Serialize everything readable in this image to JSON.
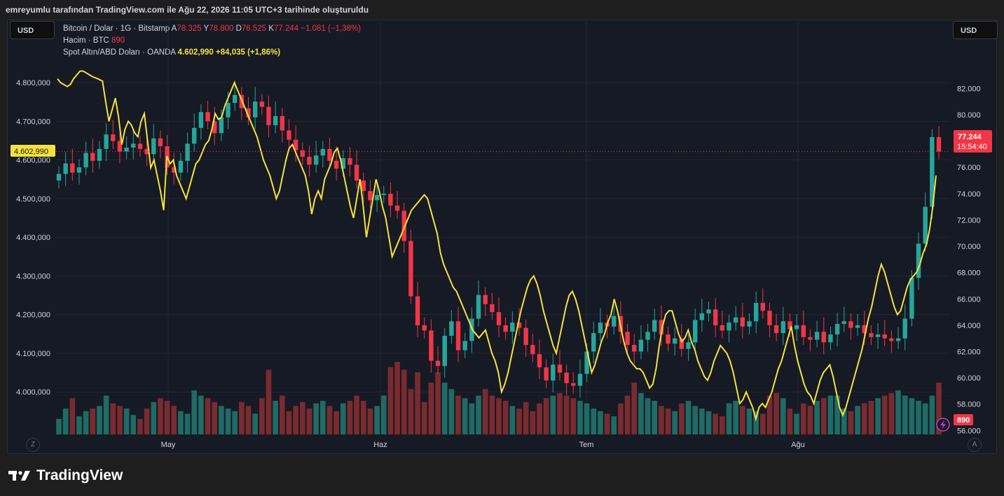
{
  "header": {
    "text": "emreyumlu tarafından TradingView.com ile Ağu 22, 2026 11:05 UTC+3 tarihinde oluşturuldu"
  },
  "left_currency": "USD",
  "right_currency": "USD",
  "legend": {
    "btc": {
      "name": "Bitcoin / Dolar · 1G · Bitstamp",
      "a_label": "A",
      "a_value": "78.325",
      "y_label": "Y",
      "y_value": "78.800",
      "d_label": "D",
      "d_value": "76.525",
      "k_label": "K",
      "k_value": "77.244",
      "change": "−1.081 (−1,38%)"
    },
    "volume": {
      "name": "Hacim · BTC",
      "value": "890"
    },
    "gold": {
      "name": "Spot Altın/ABD Doları · OANDA",
      "value": "4.602,990",
      "change": "+84,035 (+1,86%)"
    }
  },
  "badges": {
    "gold_price": "4.602,990",
    "btc_price": "77.244",
    "countdown": "15:54:40",
    "volume": "890"
  },
  "corners": {
    "left": "Z",
    "right": "A"
  },
  "logo": {
    "text": "TradingView"
  },
  "colors": {
    "up": "#26a69a",
    "down": "#f23645",
    "gold_line": "#f5e23c",
    "vol_up": "#1f6b65",
    "vol_down": "#7a2b2f"
  },
  "chart_data": {
    "type": "line",
    "x_labels": [
      "May",
      "Haz",
      "Tem",
      "Ağu"
    ],
    "left_axis": {
      "ticks": [
        "4.800,000",
        "4.700,000",
        "4.600,000",
        "4.500,000",
        "4.400,000",
        "4.300,000",
        "4.200,000",
        "4.100,000",
        "4.000,000"
      ],
      "tick_values": [
        4800,
        4700,
        4600,
        4500,
        4400,
        4300,
        4200,
        4100,
        4000
      ],
      "range": [
        3890,
        4860
      ]
    },
    "right_axis": {
      "ticks": [
        "82.000",
        "80.000",
        "78.000",
        "76.000",
        "74.000",
        "72.000",
        "70.000",
        "68.000",
        "66.000",
        "64.000",
        "62.000",
        "60.000",
        "58.000",
        "56.000"
      ],
      "tick_values": [
        82,
        80,
        78,
        76,
        74,
        72,
        70,
        68,
        66,
        64,
        62,
        60,
        58,
        56
      ],
      "range": [
        55.7,
        84.2
      ]
    },
    "gold_series": [
      4810,
      4800,
      4795,
      4790,
      4795,
      4810,
      4820,
      4830,
      4830,
      4825,
      4820,
      4815,
      4812,
      4808,
      4804,
      4750,
      4700,
      4730,
      4760,
      4710,
      4640,
      4680,
      4700,
      4690,
      4670,
      4660,
      4700,
      4720,
      4650,
      4580,
      4600,
      4560,
      4520,
      4470,
      4610,
      4590,
      4600,
      4560,
      4540,
      4520,
      4500,
      4530,
      4560,
      4590,
      4600,
      4620,
      4640,
      4650,
      4680,
      4720,
      4705,
      4710,
      4740,
      4760,
      4780,
      4800,
      4780,
      4760,
      4740,
      4720,
      4700,
      4680,
      4660,
      4630,
      4600,
      4580,
      4560,
      4530,
      4500,
      4520,
      4560,
      4600,
      4630,
      4640,
      4620,
      4600,
      4580,
      4560,
      4520,
      4460,
      4500,
      4520,
      4500,
      4550,
      4570,
      4590,
      4620,
      4630,
      4600,
      4560,
      4520,
      4480,
      4450,
      4500,
      4550,
      4480,
      4400,
      4450,
      4500,
      4550,
      4520,
      4480,
      4450,
      4400,
      4350,
      4370,
      4390,
      4410,
      4430,
      4450,
      4470,
      4480,
      4490,
      4500,
      4510,
      4500,
      4470,
      4440,
      4410,
      4360,
      4330,
      4310,
      4290,
      4270,
      4260,
      4240,
      4220,
      4200,
      4180,
      4160,
      4150,
      4140,
      4150,
      4160,
      4130,
      4100,
      4080,
      4050,
      4000,
      4020,
      4050,
      4090,
      4130,
      4170,
      4210,
      4240,
      4270,
      4290,
      4300,
      4280,
      4250,
      4210,
      4180,
      4150,
      4120,
      4100,
      4140,
      4180,
      4220,
      4250,
      4260,
      4240,
      4210,
      4170,
      4130,
      4090,
      4050,
      4070,
      4100,
      4130,
      4150,
      4180,
      4200,
      4240,
      4210,
      4170,
      4130,
      4100,
      4080,
      4070,
      4060,
      4060,
      4050,
      4030,
      4010,
      4020,
      4060,
      4120,
      4170,
      4200,
      4210,
      4210,
      4180,
      4150,
      4130,
      4140,
      4160,
      4130,
      4110,
      4080,
      4060,
      4040,
      4030,
      4050,
      4080,
      4100,
      4120,
      4110,
      4100,
      4080,
      4050,
      4010,
      3970,
      3980,
      4000,
      3980,
      3960,
      3930,
      3960,
      3970,
      3960,
      3980,
      4000,
      4030,
      4060,
      4080,
      4110,
      4140,
      4170,
      4120,
      4080,
      4050,
      4020,
      4000,
      3990,
      3970,
      4000,
      4030,
      4050,
      4060,
      4070,
      4040,
      4000,
      3960,
      3940,
      3960,
      3990,
      4020,
      4050,
      4080,
      4110,
      4150,
      4190,
      4220,
      4260,
      4300,
      4330,
      4310,
      4280,
      4250,
      4220,
      4200,
      4210,
      4240,
      4270,
      4290,
      4300,
      4310,
      4330,
      4360,
      4380,
      4420,
      4480,
      4560
    ],
    "btc_series": [
      75.5,
      76.3,
      75.6,
      76.0,
      77.1,
      76.5,
      77.4,
      78.5,
      78.0,
      77.2,
      77.5,
      77.8,
      77.4,
      77.0,
      78.2,
      77.6,
      76.0,
      75.6,
      76.5,
      77.8,
      79.0,
      80.2,
      79.5,
      78.6,
      79.8,
      80.9,
      81.5,
      80.5,
      79.8,
      81.0,
      80.6,
      79.2,
      79.9,
      78.8,
      78.1,
      77.3,
      76.8,
      76.2,
      76.9,
      77.4,
      76.5,
      75.9,
      76.7,
      76.2,
      75.0,
      74.2,
      73.5,
      73.9,
      74.0,
      73.1,
      72.7,
      70.4,
      66.2,
      64.0,
      63.6,
      61.3,
      60.9,
      63.2,
      64.3,
      62.1,
      62.8,
      64.5,
      66.3,
      65.6,
      65.0,
      64.0,
      63.5,
      64.2,
      63.8,
      62.5,
      61.8,
      60.8,
      59.8,
      61.0,
      60.4,
      59.6,
      59.4,
      60.3,
      62.0,
      63.4,
      64.2,
      63.9,
      64.7,
      63.5,
      62.5,
      62.0,
      62.9,
      63.5,
      64.4,
      63.3,
      62.6,
      63.0,
      62.2,
      62.7,
      64.4,
      64.9,
      65.2,
      64.0,
      63.6,
      64.2,
      64.6,
      63.9,
      64.3,
      65.7,
      65.1,
      64.0,
      63.4,
      64.3,
      63.7,
      64.0,
      63.1,
      62.9,
      63.5,
      62.7,
      63.3,
      64.1,
      64.3,
      63.8,
      64.0,
      63.4,
      63.1,
      63.3,
      63.0,
      62.8,
      63.0,
      64.5,
      67.6,
      70.2,
      73.0,
      78.3,
      77.2
    ],
    "volume_series": [
      12,
      20,
      28,
      14,
      18,
      20,
      22,
      30,
      24,
      22,
      20,
      15,
      12,
      20,
      25,
      28,
      26,
      22,
      18,
      16,
      34,
      30,
      28,
      25,
      22,
      20,
      18,
      25,
      22,
      16,
      28,
      50,
      26,
      30,
      18,
      22,
      25,
      20,
      24,
      26,
      22,
      18,
      24,
      26,
      30,
      26,
      20,
      22,
      30,
      52,
      56,
      50,
      35,
      48,
      25,
      40,
      48,
      40,
      35,
      30,
      28,
      24,
      30,
      35,
      30,
      28,
      26,
      22,
      20,
      25,
      18,
      24,
      28,
      30,
      32,
      30,
      28,
      26,
      24,
      20,
      18,
      16,
      14,
      24,
      30,
      40,
      32,
      28,
      26,
      22,
      20,
      18,
      24,
      26,
      22,
      20,
      18,
      16,
      14,
      24,
      26,
      22,
      20,
      18,
      16,
      30,
      32,
      28,
      20,
      16,
      24,
      22,
      26,
      28,
      30,
      30,
      20,
      18,
      22,
      24,
      26,
      28,
      30,
      32,
      34,
      30,
      28,
      26,
      24,
      30,
      40,
      60,
      50,
      80,
      72
    ]
  }
}
